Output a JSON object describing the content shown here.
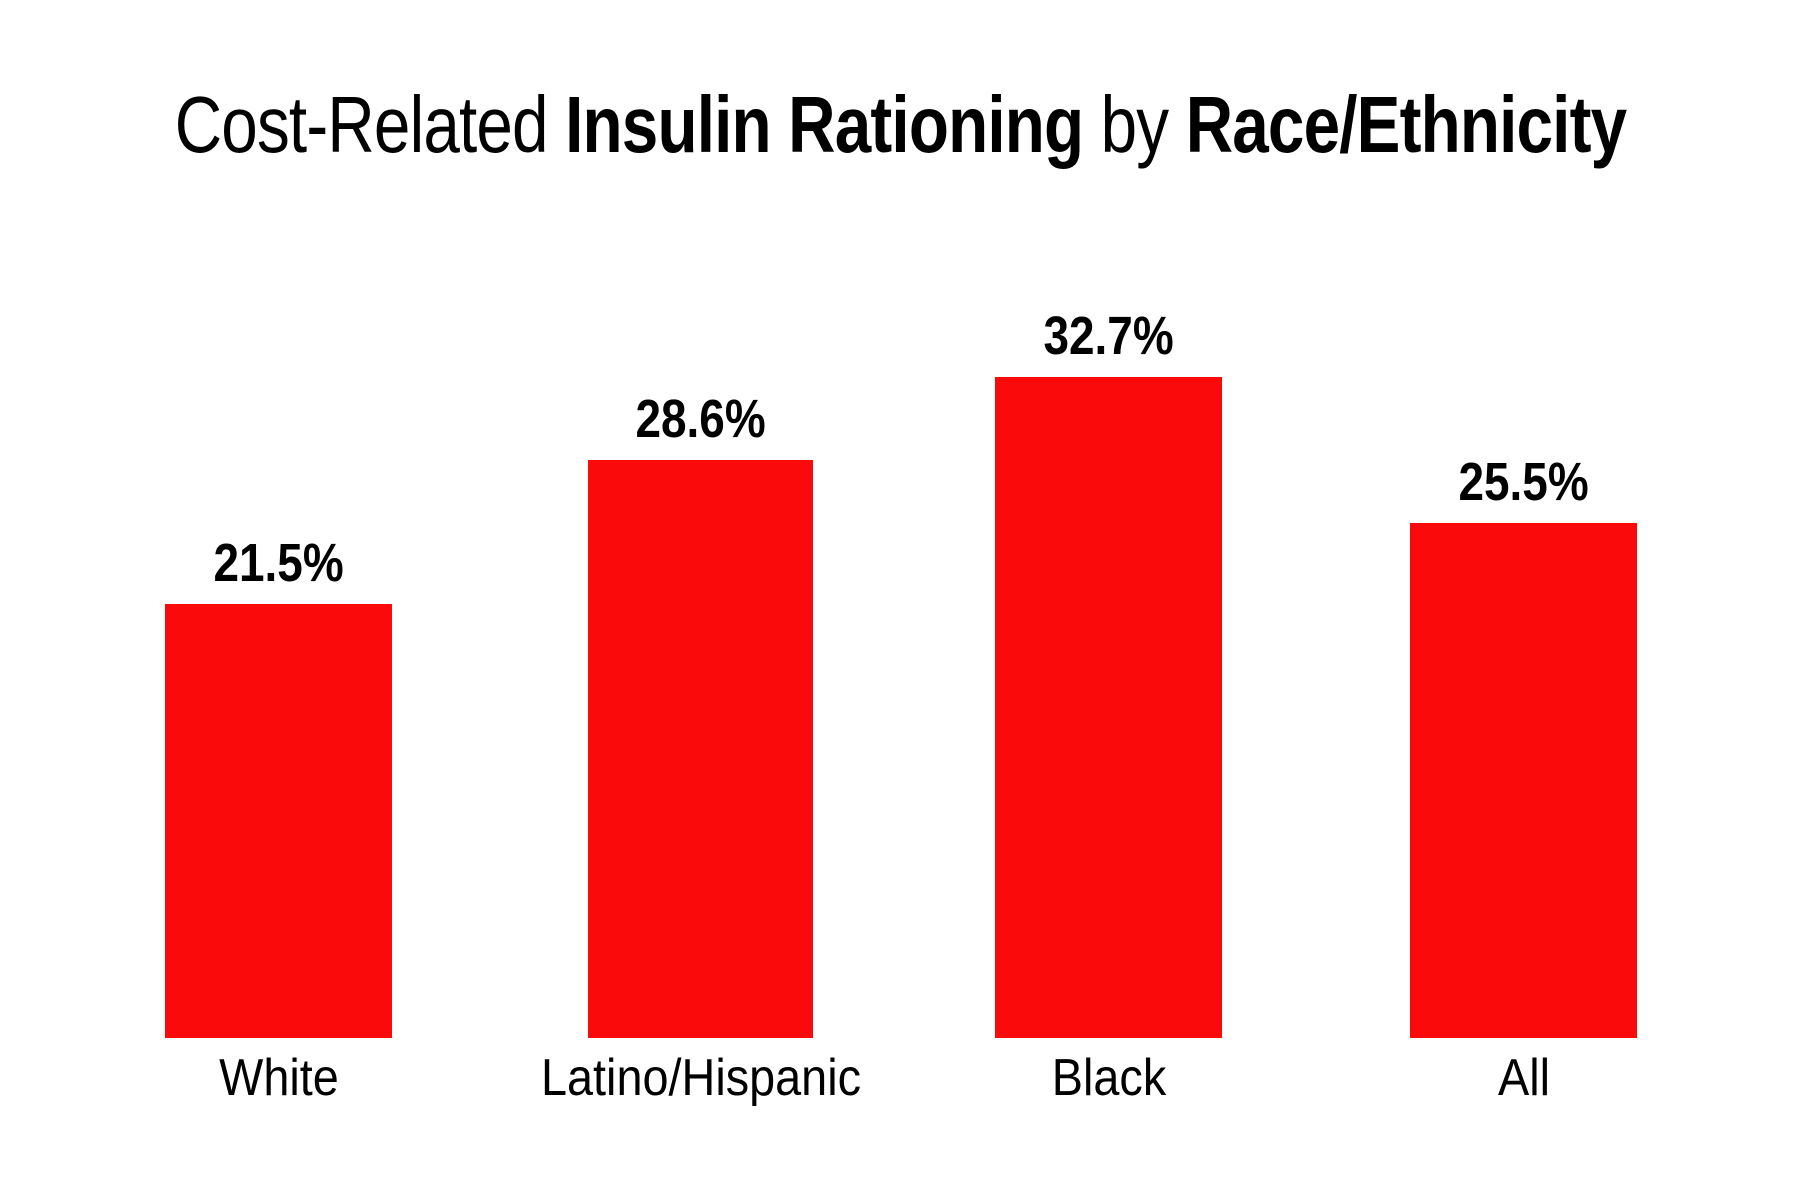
{
  "title": {
    "part1": "Cost-Related ",
    "part2": "Insulin Rationing",
    "part3": " by ",
    "part4": "Race/Ethnicity",
    "full": "Cost-Related Insulin Rationing by Race/Ethnicity"
  },
  "colors": {
    "bar": "#fa0a0a",
    "text": "#000000",
    "background": "#ffffff"
  },
  "chart_data": {
    "type": "bar",
    "title": "Cost-Related Insulin Rationing by Race/Ethnicity",
    "categories": [
      "White",
      "Latino/Hispanic",
      "Black",
      "All"
    ],
    "values": [
      21.5,
      28.6,
      32.7,
      25.5
    ],
    "points": [
      {
        "category": "White",
        "value": 21.5,
        "value_label": "21.5%"
      },
      {
        "category": "Latino/Hispanic",
        "value": 28.6,
        "value_label": "28.6%"
      },
      {
        "category": "Black",
        "value": 32.7,
        "value_label": "32.7%"
      },
      {
        "category": "All",
        "value": 25.5,
        "value_label": "25.5%"
      }
    ],
    "bar_color": "#fa0a0a",
    "value_label_position": "above-bar",
    "xlabel": "",
    "ylabel": "",
    "axes_visible": false,
    "grid": false,
    "legend": false,
    "ylim": [
      0,
      41.4
    ],
    "pixels_per_percent": 20.2
  }
}
